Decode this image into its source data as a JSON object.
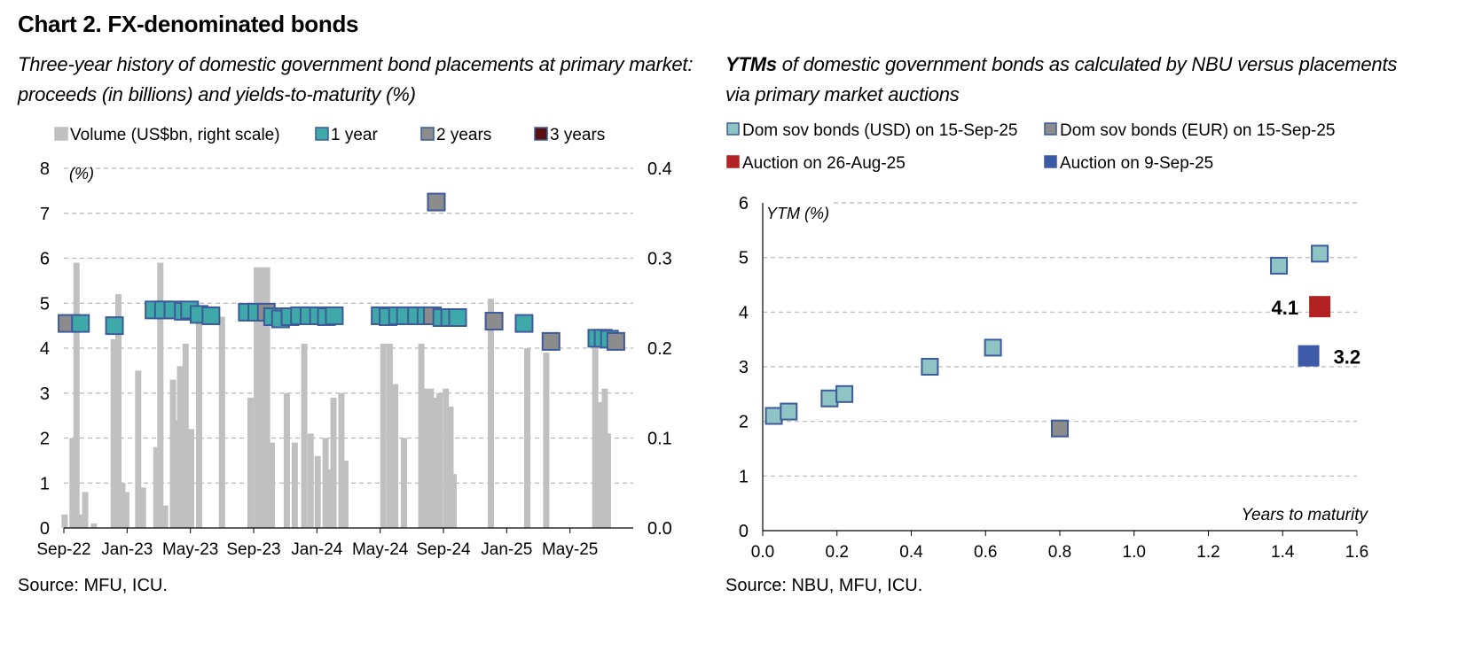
{
  "title": "Chart 2. FX-denominated bonds",
  "chart_data": [
    {
      "type": "bar+scatter",
      "subtitle_line1": "Three-year history of domestic government bond placements at primary market:",
      "subtitle_line2": "proceeds (in billions) and yields-to-maturity (%)",
      "y_unit_label": "(%)",
      "ylim_left": [
        0,
        8
      ],
      "ylim_right": [
        0,
        0.4
      ],
      "yticks_left": [
        "0",
        "1",
        "2",
        "3",
        "4",
        "5",
        "6",
        "7",
        "8"
      ],
      "yticks_right": [
        "0.0",
        "0.1",
        "0.2",
        "0.3",
        "0.4"
      ],
      "xticks": [
        "Sep-22",
        "Jan-23",
        "May-23",
        "Sep-23",
        "Jan-24",
        "May-24",
        "Sep-24",
        "Jan-25",
        "May-25"
      ],
      "x_range_months": [
        0,
        36
      ],
      "grid": "horizontal dashed",
      "legend": [
        {
          "label": "Volume (US$bn, right scale)",
          "color": "#c0c0c0",
          "border": "#c0c0c0"
        },
        {
          "label": "1 year",
          "color": "#3fa8a8",
          "border": "#3d5a9a"
        },
        {
          "label": "2 years",
          "color": "#8c8c8c",
          "border": "#3d5a9a"
        },
        {
          "label": "3 years",
          "color": "#5c1010",
          "border": "#3d5a9a"
        }
      ],
      "bars": [
        {
          "x": 0.05,
          "v": 0.015
        },
        {
          "x": 0.55,
          "v": 0.1
        },
        {
          "x": 0.8,
          "v": 0.295
        },
        {
          "x": 1.1,
          "v": 0.015
        },
        {
          "x": 1.35,
          "v": 0.04
        },
        {
          "x": 1.9,
          "v": 0.005
        },
        {
          "x": 3.15,
          "v": 0.21
        },
        {
          "x": 3.45,
          "v": 0.26
        },
        {
          "x": 3.7,
          "v": 0.05
        },
        {
          "x": 3.95,
          "v": 0.04
        },
        {
          "x": 4.7,
          "v": 0.175
        },
        {
          "x": 5.0,
          "v": 0.045
        },
        {
          "x": 5.85,
          "v": 0.09
        },
        {
          "x": 6.1,
          "v": 0.295
        },
        {
          "x": 6.4,
          "v": 0.025
        },
        {
          "x": 6.9,
          "v": 0.165
        },
        {
          "x": 7.1,
          "v": 0.12
        },
        {
          "x": 7.35,
          "v": 0.18
        },
        {
          "x": 7.7,
          "v": 0.205
        },
        {
          "x": 8.05,
          "v": 0.11
        },
        {
          "x": 8.55,
          "v": 0.235
        },
        {
          "x": 10.0,
          "v": 0.235
        },
        {
          "x": 11.8,
          "v": 0.145
        },
        {
          "x": 12.2,
          "v": 0.29
        },
        {
          "x": 12.55,
          "v": 0.29
        },
        {
          "x": 12.85,
          "v": 0.29
        },
        {
          "x": 13.15,
          "v": 0.095
        },
        {
          "x": 14.1,
          "v": 0.15
        },
        {
          "x": 14.6,
          "v": 0.095
        },
        {
          "x": 15.2,
          "v": 0.205
        },
        {
          "x": 15.6,
          "v": 0.105
        },
        {
          "x": 16.05,
          "v": 0.08
        },
        {
          "x": 16.55,
          "v": 0.1
        },
        {
          "x": 16.85,
          "v": 0.065
        },
        {
          "x": 17.05,
          "v": 0.145
        },
        {
          "x": 17.55,
          "v": 0.15
        },
        {
          "x": 17.8,
          "v": 0.075
        },
        {
          "x": 20.2,
          "v": 0.205
        },
        {
          "x": 20.6,
          "v": 0.205
        },
        {
          "x": 20.95,
          "v": 0.16
        },
        {
          "x": 21.5,
          "v": 0.1
        },
        {
          "x": 22.6,
          "v": 0.205
        },
        {
          "x": 22.95,
          "v": 0.155
        },
        {
          "x": 23.2,
          "v": 0.155
        },
        {
          "x": 23.5,
          "v": 0.145
        },
        {
          "x": 23.75,
          "v": 0.15
        },
        {
          "x": 24.15,
          "v": 0.155
        },
        {
          "x": 24.45,
          "v": 0.135
        },
        {
          "x": 24.65,
          "v": 0.06
        },
        {
          "x": 27.0,
          "v": 0.255
        },
        {
          "x": 29.3,
          "v": 0.2
        },
        {
          "x": 30.5,
          "v": 0.195
        },
        {
          "x": 33.6,
          "v": 0.205
        },
        {
          "x": 33.9,
          "v": 0.14
        },
        {
          "x": 34.2,
          "v": 0.155
        },
        {
          "x": 34.4,
          "v": 0.105
        }
      ],
      "points": [
        {
          "x": 0.2,
          "y": 4.55,
          "s": "2 years"
        },
        {
          "x": 1.05,
          "y": 4.55,
          "s": "1 year"
        },
        {
          "x": 3.2,
          "y": 4.5,
          "s": "1 year"
        },
        {
          "x": 5.7,
          "y": 4.85,
          "s": "1 year"
        },
        {
          "x": 6.3,
          "y": 4.85,
          "s": "1 year"
        },
        {
          "x": 6.9,
          "y": 4.85,
          "s": "1 year"
        },
        {
          "x": 7.55,
          "y": 4.82,
          "s": "1 year"
        },
        {
          "x": 7.95,
          "y": 4.85,
          "s": "1 year"
        },
        {
          "x": 8.55,
          "y": 4.75,
          "s": "1 year"
        },
        {
          "x": 9.3,
          "y": 4.72,
          "s": "1 year"
        },
        {
          "x": 11.6,
          "y": 4.8,
          "s": "1 year"
        },
        {
          "x": 12.2,
          "y": 4.8,
          "s": "1 year"
        },
        {
          "x": 12.8,
          "y": 4.8,
          "s": "2 years"
        },
        {
          "x": 13.2,
          "y": 4.7,
          "s": "1 year"
        },
        {
          "x": 13.7,
          "y": 4.65,
          "s": "1 year"
        },
        {
          "x": 14.3,
          "y": 4.7,
          "s": "1 year"
        },
        {
          "x": 14.9,
          "y": 4.72,
          "s": "1 year"
        },
        {
          "x": 15.5,
          "y": 4.72,
          "s": "1 year"
        },
        {
          "x": 16.1,
          "y": 4.72,
          "s": "1 year"
        },
        {
          "x": 16.6,
          "y": 4.7,
          "s": "1 year"
        },
        {
          "x": 17.1,
          "y": 4.72,
          "s": "1 year"
        },
        {
          "x": 20.0,
          "y": 4.72,
          "s": "1 year"
        },
        {
          "x": 20.5,
          "y": 4.7,
          "s": "1 year"
        },
        {
          "x": 21.1,
          "y": 4.72,
          "s": "1 year"
        },
        {
          "x": 21.6,
          "y": 4.72,
          "s": "1 year"
        },
        {
          "x": 22.3,
          "y": 4.72,
          "s": "1 year"
        },
        {
          "x": 22.9,
          "y": 4.72,
          "s": "1 year"
        },
        {
          "x": 23.3,
          "y": 4.72,
          "s": "2 years"
        },
        {
          "x": 23.55,
          "y": 7.25,
          "s": "2 years"
        },
        {
          "x": 23.9,
          "y": 4.68,
          "s": "1 year"
        },
        {
          "x": 24.4,
          "y": 4.68,
          "s": "1 year"
        },
        {
          "x": 24.9,
          "y": 4.68,
          "s": "1 year"
        },
        {
          "x": 27.2,
          "y": 4.6,
          "s": "2 years"
        },
        {
          "x": 29.1,
          "y": 4.55,
          "s": "1 year"
        },
        {
          "x": 30.8,
          "y": 4.15,
          "s": "2 years"
        },
        {
          "x": 33.7,
          "y": 4.22,
          "s": "1 year"
        },
        {
          "x": 34.1,
          "y": 4.22,
          "s": "1 year"
        },
        {
          "x": 34.5,
          "y": 4.2,
          "s": "1 year"
        },
        {
          "x": 34.9,
          "y": 4.15,
          "s": "2 years"
        }
      ]
    },
    {
      "type": "scatter",
      "subtitle_prefix": "YTMs",
      "subtitle_rest": " of domestic government bonds as calculated by NBU versus placements",
      "subtitle_line2": "via primary market auctions",
      "ylabel": "YTM (%)",
      "xlabel": "Years to maturity",
      "ylim": [
        0,
        6
      ],
      "xlim": [
        0,
        1.6
      ],
      "yticks": [
        "0",
        "1",
        "2",
        "3",
        "4",
        "5",
        "6"
      ],
      "xticks": [
        "0.0",
        "0.2",
        "0.4",
        "0.6",
        "0.8",
        "1.0",
        "1.2",
        "1.4",
        "1.6"
      ],
      "grid": "horizontal dashed",
      "legend": [
        {
          "label": "Dom sov bonds (USD) on 15-Sep-25",
          "color": "#8fc4c4",
          "border": "#3d5a9a"
        },
        {
          "label": "Dom sov bonds (EUR) on 15-Sep-25",
          "color": "#8c8c8c",
          "border": "#3d5a9a"
        },
        {
          "label": "Auction on 26-Aug-25",
          "color": "#b22222",
          "border": "#b22222"
        },
        {
          "label": "Auction on 9-Sep-25",
          "color": "#3d5aa8",
          "border": "#3d5aa8"
        }
      ],
      "series": [
        {
          "name": "Dom sov bonds (USD) on 15-Sep-25",
          "points": [
            [
              0.03,
              2.1
            ],
            [
              0.07,
              2.18
            ],
            [
              0.18,
              2.42
            ],
            [
              0.22,
              2.5
            ],
            [
              0.45,
              3.0
            ],
            [
              0.62,
              3.35
            ],
            [
              1.39,
              4.85
            ],
            [
              1.5,
              5.07
            ]
          ]
        },
        {
          "name": "Dom sov bonds (EUR) on 15-Sep-25",
          "points": [
            [
              0.8,
              1.87
            ]
          ]
        },
        {
          "name": "Auction on 26-Aug-25",
          "points": [
            [
              1.5,
              4.1
            ]
          ],
          "label": "4.1"
        },
        {
          "name": "Auction on 9-Sep-25",
          "points": [
            [
              1.47,
              3.2
            ]
          ],
          "label": "3.2"
        }
      ]
    }
  ],
  "sources": [
    "Source: MFU, ICU.",
    "Source: NBU, MFU, ICU."
  ]
}
